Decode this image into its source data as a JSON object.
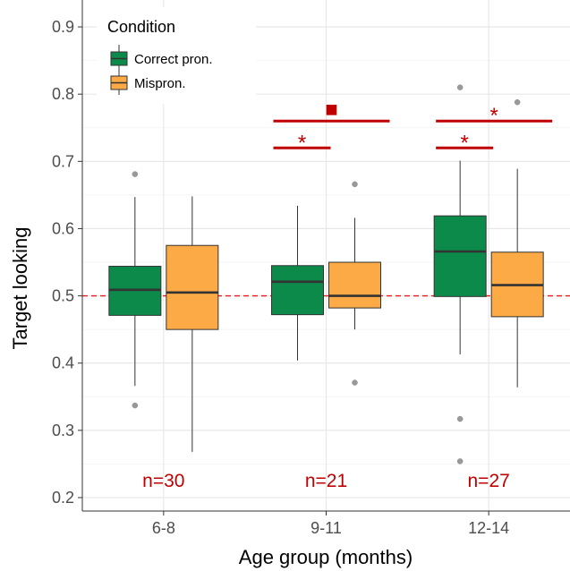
{
  "chart_data": {
    "type": "boxplot",
    "xlabel": "Age group (months)",
    "ylabel": "Target looking",
    "categories": [
      "6-8",
      "9-11",
      "12-14"
    ],
    "ylim": [
      0.18,
      0.94
    ],
    "yticks": [
      0.2,
      0.3,
      0.4,
      0.5,
      0.6,
      0.7,
      0.8,
      0.9
    ],
    "ytick_labels": [
      "0.2",
      "0.3",
      "0.4",
      "0.5",
      "0.6",
      "0.7",
      "0.8",
      "0.9"
    ],
    "grid": true,
    "reference_line": {
      "y": 0.5,
      "style": "dashed",
      "color": "#e41a1c"
    },
    "legend": {
      "title": "Condition",
      "position": "top-left",
      "entries": [
        {
          "label": "Correct pron.",
          "color": "#0b8a4a"
        },
        {
          "label": "Mispron.",
          "color": "#fbaa45"
        }
      ]
    },
    "series": [
      {
        "name": "Correct pron.",
        "color": "#0b8a4a",
        "boxes": [
          {
            "q1": 0.471,
            "median": 0.509,
            "q3": 0.544,
            "whisker_low": 0.366,
            "whisker_high": 0.647,
            "outliers": [
              0.337,
              0.681
            ]
          },
          {
            "q1": 0.472,
            "median": 0.521,
            "q3": 0.545,
            "whisker_low": 0.404,
            "whisker_high": 0.634,
            "outliers": []
          },
          {
            "q1": 0.499,
            "median": 0.566,
            "q3": 0.619,
            "whisker_low": 0.413,
            "whisker_high": 0.701,
            "outliers": [
              0.81,
              0.317,
              0.254
            ]
          }
        ]
      },
      {
        "name": "Mispron.",
        "color": "#fbaa45",
        "boxes": [
          {
            "q1": 0.45,
            "median": 0.505,
            "q3": 0.575,
            "whisker_low": 0.268,
            "whisker_high": 0.648,
            "outliers": []
          },
          {
            "q1": 0.482,
            "median": 0.5,
            "q3": 0.55,
            "whisker_low": 0.45,
            "whisker_high": 0.616,
            "outliers": [
              0.666,
              0.371
            ]
          },
          {
            "q1": 0.469,
            "median": 0.516,
            "q3": 0.565,
            "whisker_low": 0.364,
            "whisker_high": 0.689,
            "outliers": [
              0.788
            ]
          }
        ]
      }
    ],
    "annotations": {
      "color": "#c00000",
      "n_labels": [
        "n=30",
        "n=21",
        "n=27"
      ],
      "n_label_y": 0.225,
      "significance": [
        {
          "category": 1,
          "from": "Correct pron.",
          "to": "Correct pron.",
          "line_y": 0.72,
          "span": "left",
          "label": "*"
        },
        {
          "category": 1,
          "from": "Correct pron.",
          "to": "Mispron.",
          "line_y": 0.76,
          "span": "wide",
          "label": "■"
        },
        {
          "category": 2,
          "from": "Correct pron.",
          "to": "Correct pron.",
          "line_y": 0.72,
          "span": "left",
          "label": "*"
        },
        {
          "category": 2,
          "from": "Correct pron.",
          "to": "Mispron.",
          "line_y": 0.76,
          "span": "wide",
          "label": "*"
        }
      ]
    }
  }
}
